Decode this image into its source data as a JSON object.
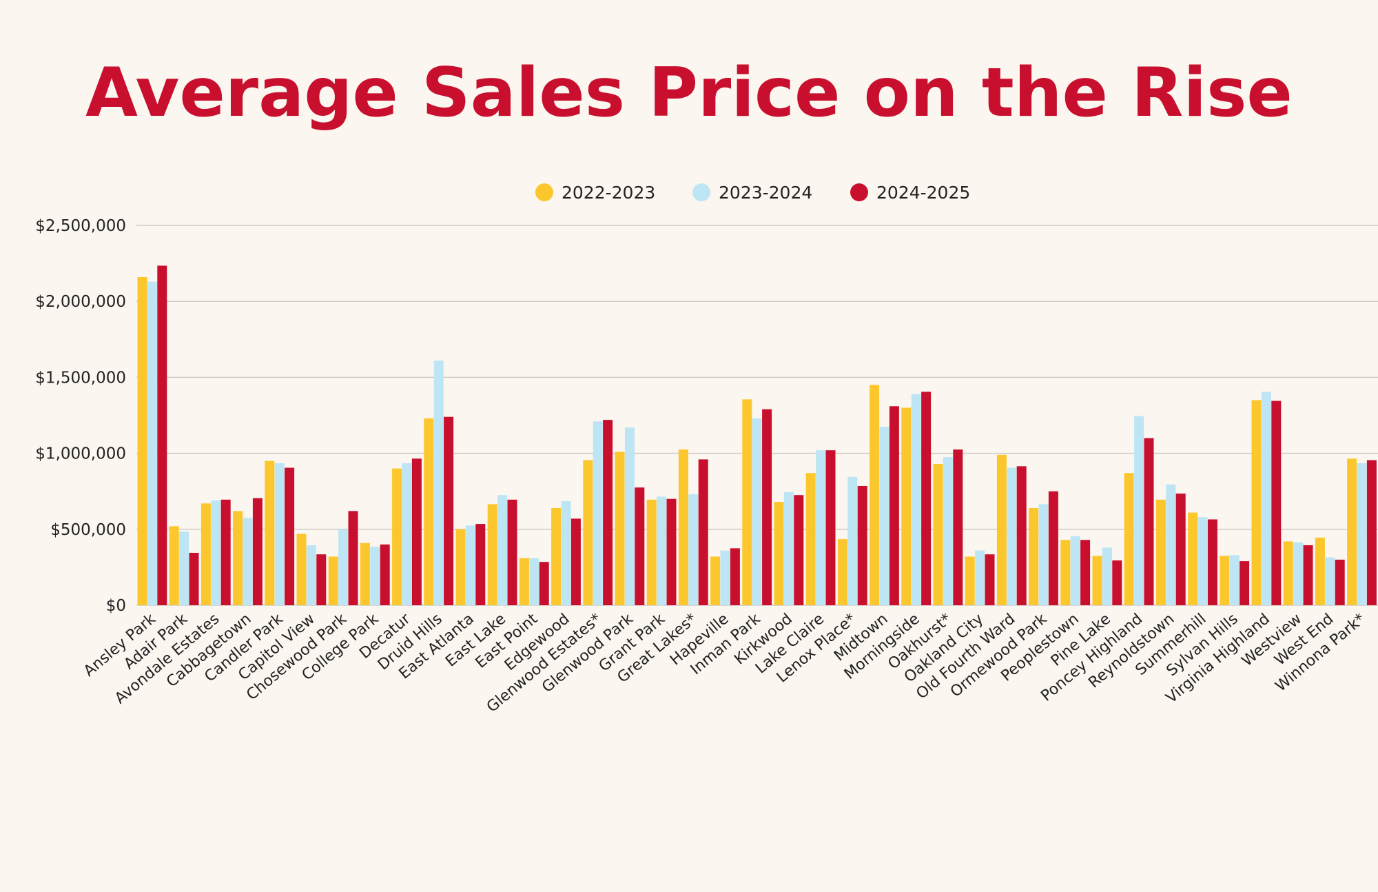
{
  "colors": {
    "background": "#fbf6f0",
    "title": "#c8102e",
    "grid": "#cfcac4",
    "text": "#222222"
  },
  "chart_data": {
    "type": "bar",
    "title": "Average Sales Price on the Rise",
    "xlabel": "",
    "ylabel": "",
    "ylim": [
      0,
      2500000
    ],
    "yticks": [
      0,
      500000,
      1000000,
      1500000,
      2000000,
      2500000
    ],
    "ytick_labels": [
      "$0",
      "$500,000",
      "$1,000,000",
      "$1,500,000",
      "$2,000,000",
      "$2,500,000"
    ],
    "grid": true,
    "legend_position": "top-center",
    "categories": [
      "Ansley Park",
      "Adair Park",
      "Avondale Estates",
      "Cabbagetown",
      "Candler Park",
      "Capitol View",
      "Chosewood Park",
      "College Park",
      "Decatur",
      "Druid Hills",
      "East Atlanta",
      "East Lake",
      "East Point",
      "Edgewood",
      "Glenwood Estates*",
      "Glenwood Park",
      "Grant Park",
      "Great Lakes*",
      "Hapeville",
      "Inman Park",
      "Kirkwood",
      "Lake Claire",
      "Lenox Place*",
      "Midtown",
      "Morningside",
      "Oakhurst*",
      "Oakland City",
      "Old Fourth Ward",
      "Ormewood Park",
      "Peoplestown",
      "Pine Lake",
      "Poncey Highland",
      "Reynoldstown",
      "Summerhill",
      "Sylvan Hills",
      "Virginia Highland",
      "Westview",
      "West End",
      "Winnona Park*"
    ],
    "series": [
      {
        "name": "2022-2023",
        "color": "#fcc72c",
        "values": [
          2160000,
          520000,
          670000,
          620000,
          950000,
          470000,
          320000,
          410000,
          900000,
          1230000,
          500000,
          665000,
          310000,
          640000,
          955000,
          1010000,
          695000,
          1025000,
          320000,
          1355000,
          680000,
          870000,
          435000,
          1450000,
          1300000,
          930000,
          320000,
          990000,
          640000,
          430000,
          325000,
          870000,
          695000,
          610000,
          325000,
          1350000,
          420000,
          445000,
          965000
        ]
      },
      {
        "name": "2023-2024",
        "color": "#bde5f4",
        "values": [
          2130000,
          485000,
          690000,
          575000,
          935000,
          395000,
          500000,
          385000,
          935000,
          1610000,
          525000,
          725000,
          310000,
          685000,
          1210000,
          1170000,
          715000,
          730000,
          360000,
          1230000,
          745000,
          1020000,
          845000,
          1175000,
          1390000,
          975000,
          360000,
          905000,
          665000,
          455000,
          380000,
          1245000,
          795000,
          580000,
          330000,
          1405000,
          415000,
          315000,
          935000
        ]
      },
      {
        "name": "2024-2025",
        "color": "#c8102e",
        "values": [
          2235000,
          345000,
          695000,
          705000,
          905000,
          335000,
          620000,
          400000,
          965000,
          1240000,
          535000,
          695000,
          285000,
          570000,
          1220000,
          775000,
          700000,
          960000,
          375000,
          1290000,
          725000,
          1020000,
          785000,
          1310000,
          1405000,
          1025000,
          335000,
          915000,
          750000,
          430000,
          295000,
          1100000,
          735000,
          565000,
          290000,
          1345000,
          395000,
          300000,
          955000
        ]
      }
    ]
  }
}
